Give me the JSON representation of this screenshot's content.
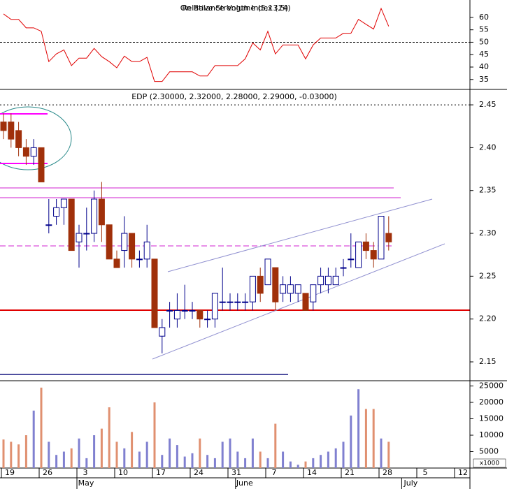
{
  "chart_data": [
    {
      "type": "line",
      "titles": [
        "On Balance Volume (5,13,5)",
        "Relative Strength Index (14)"
      ],
      "color": "#e00000",
      "values": [
        61.4,
        59.2,
        59.2,
        55.8,
        55.8,
        54.4,
        42.2,
        45.3,
        46.9,
        40.6,
        43.6,
        43.6,
        47.5,
        44.2,
        42.2,
        39.7,
        44.4,
        42.2,
        42.2,
        43.9,
        34.2,
        34.2,
        38.1,
        38.1,
        38.1,
        38.1,
        36.4,
        36.4,
        40.6,
        40.6,
        40.6,
        40.6,
        43.3,
        49.7,
        46.9,
        54.4,
        45.3,
        48.9,
        48.9,
        48.9,
        43.3,
        48.9,
        51.7,
        51.7,
        51.7,
        53.6,
        53.6,
        59.2,
        57.2,
        55.3,
        63.6,
        56.4,
        null,
        null,
        null,
        null,
        null,
        null,
        null,
        null,
        null
      ],
      "ylim": [
        31,
        67
      ],
      "yticks": [
        35,
        40,
        45,
        50,
        55,
        60
      ],
      "reference_line": 50
    },
    {
      "type": "candlestick",
      "title": "EDP (2.30000, 2.32000, 2.28000, 2.29000, -0.03000)",
      "up_color": "#00008b",
      "down_color": "#a0300a",
      "open": [
        2.43,
        2.43,
        2.42,
        2.4,
        2.39,
        2.4,
        2.31,
        2.32,
        2.33,
        2.34,
        2.29,
        2.3,
        2.3,
        2.34,
        2.31,
        2.27,
        2.28,
        2.3,
        2.27,
        2.27,
        2.27,
        2.18,
        2.21,
        2.2,
        2.21,
        2.21,
        2.21,
        2.2,
        2.2,
        2.22,
        2.22,
        2.22,
        2.22,
        2.22,
        2.25,
        2.24,
        2.26,
        2.23,
        2.23,
        2.23,
        2.23,
        2.22,
        2.24,
        2.24,
        2.24,
        2.26,
        2.27,
        2.26,
        2.29,
        2.28,
        2.27,
        2.3,
        null,
        null,
        null,
        null,
        null,
        null,
        null,
        null,
        null
      ],
      "high": [
        2.44,
        2.44,
        2.43,
        2.41,
        2.41,
        2.4,
        2.34,
        2.34,
        2.34,
        2.34,
        2.31,
        2.33,
        2.35,
        2.36,
        2.31,
        2.28,
        2.32,
        2.3,
        2.28,
        2.31,
        2.27,
        2.2,
        2.22,
        2.23,
        2.24,
        2.22,
        2.21,
        2.21,
        2.23,
        2.26,
        2.23,
        2.23,
        2.23,
        2.25,
        2.26,
        2.27,
        2.26,
        2.25,
        2.25,
        2.24,
        2.23,
        2.24,
        2.26,
        2.26,
        2.26,
        2.27,
        2.3,
        2.29,
        2.3,
        2.29,
        2.32,
        2.32,
        null,
        null,
        null,
        null,
        null,
        null,
        null,
        null,
        null
      ],
      "low": [
        2.41,
        2.4,
        2.39,
        2.38,
        2.38,
        2.36,
        2.3,
        2.31,
        2.31,
        2.28,
        2.26,
        2.28,
        2.29,
        2.29,
        2.27,
        2.26,
        2.26,
        2.26,
        2.26,
        2.26,
        2.19,
        2.16,
        2.19,
        2.19,
        2.2,
        2.2,
        2.19,
        2.19,
        2.19,
        2.21,
        2.21,
        2.21,
        2.21,
        2.21,
        2.22,
        2.24,
        2.21,
        2.22,
        2.22,
        2.22,
        2.21,
        2.21,
        2.23,
        2.23,
        2.24,
        2.25,
        2.26,
        2.26,
        2.27,
        2.26,
        2.27,
        2.28,
        null,
        null,
        null,
        null,
        null,
        null,
        null,
        null,
        null
      ],
      "close": [
        2.42,
        2.41,
        2.4,
        2.39,
        2.4,
        2.36,
        2.31,
        2.33,
        2.34,
        2.28,
        2.3,
        2.3,
        2.34,
        2.31,
        2.27,
        2.26,
        2.3,
        2.27,
        2.27,
        2.29,
        2.19,
        2.19,
        2.21,
        2.21,
        2.21,
        2.21,
        2.2,
        2.2,
        2.23,
        2.22,
        2.22,
        2.22,
        2.22,
        2.25,
        2.23,
        2.27,
        2.22,
        2.24,
        2.24,
        2.24,
        2.21,
        2.24,
        2.25,
        2.25,
        2.25,
        2.26,
        2.27,
        2.29,
        2.28,
        2.27,
        2.32,
        2.29,
        null,
        null,
        null,
        null,
        null,
        null,
        null,
        null,
        null
      ],
      "ylim": [
        2.128,
        2.468
      ],
      "yticks": [
        {
          "value": 2.15,
          "label": "2.15"
        },
        {
          "value": 2.2,
          "label": "2.20"
        },
        2.25,
        {
          "value": 2.3,
          "label": "2.30"
        },
        2.35,
        {
          "value": 2.4,
          "label": "2.40"
        },
        2.45
      ]
    },
    {
      "type": "bar",
      "unit_label": "x1000",
      "up_color": "#8080d0",
      "down_color": "#e09070",
      "categories": [
        "19",
        null,
        null,
        null,
        null,
        "26",
        null,
        null,
        null,
        null,
        "3",
        null,
        null,
        null,
        null,
        "10",
        null,
        null,
        null,
        null,
        "17",
        null,
        null,
        null,
        null,
        "24",
        null,
        null,
        null,
        null,
        "31",
        null,
        null,
        null,
        null,
        "7",
        null,
        null,
        null,
        null,
        "14",
        null,
        null,
        null,
        null,
        "21",
        null,
        null,
        null,
        null,
        "28",
        null,
        null,
        null,
        null,
        "5",
        null,
        null,
        null,
        null,
        "12"
      ],
      "months": [
        {
          "label": "May",
          "category": 10
        },
        {
          "label": "June",
          "category": 31
        },
        {
          "label": "July",
          "category": 53
        }
      ],
      "values": [
        8700,
        8000,
        7200,
        10000,
        17500,
        24500,
        8000,
        4000,
        5000,
        6000,
        9000,
        3000,
        10000,
        12000,
        18500,
        8000,
        6000,
        11000,
        5000,
        8000,
        20000,
        4000,
        9000,
        7000,
        3500,
        4500,
        9000,
        4000,
        3000,
        8000,
        9000,
        5000,
        3000,
        9000,
        5000,
        3000,
        13500,
        5000,
        2000,
        1000,
        2000,
        3000,
        4000,
        5000,
        6000,
        8000,
        16000,
        24000,
        18000,
        18000,
        9000,
        8000,
        null,
        null,
        null,
        null,
        null,
        null,
        null,
        null,
        null
      ],
      "ylim": [
        0,
        26600
      ],
      "yticks": [
        5000,
        10000,
        15000,
        20000,
        25000
      ]
    }
  ]
}
